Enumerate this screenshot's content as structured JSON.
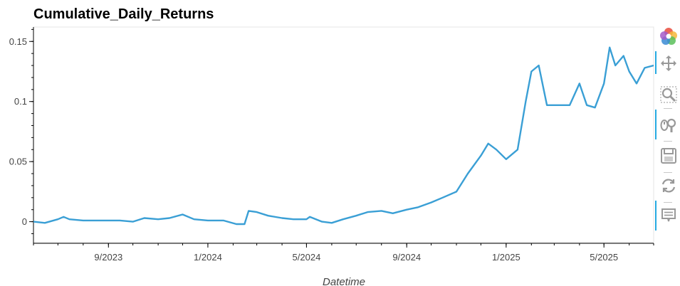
{
  "chart_data": {
    "type": "line",
    "title": "Cumulative_Daily_Returns",
    "xlabel": "Datetime",
    "ylabel": "",
    "x_tick_labels": [
      "9/2023",
      "1/2024",
      "5/2024",
      "9/2024",
      "1/2025",
      "5/2025"
    ],
    "x_tick_dates": [
      "2023-09-01",
      "2024-01-01",
      "2024-05-01",
      "2024-09-01",
      "2025-01-01",
      "2025-05-01"
    ],
    "xlim": [
      "2023-06-01",
      "2025-07-01"
    ],
    "y_tick_labels": [
      "0",
      "0.05",
      "0.1",
      "0.15"
    ],
    "y_tick_values": [
      0,
      0.05,
      0.1,
      0.15
    ],
    "ylim": [
      -0.018,
      0.162
    ],
    "grid": false,
    "line_color": "#3a9fd5",
    "series": [
      {
        "x": [
          "2023-06-01",
          "2023-06-15",
          "2023-07-01",
          "2023-07-08",
          "2023-07-15",
          "2023-08-01",
          "2023-08-15",
          "2023-09-01",
          "2023-09-15",
          "2023-10-01",
          "2023-10-15",
          "2023-11-01",
          "2023-11-15",
          "2023-12-01",
          "2023-12-15",
          "2024-01-01",
          "2024-01-20",
          "2024-02-05",
          "2024-02-15",
          "2024-02-20",
          "2024-03-01",
          "2024-03-15",
          "2024-04-01",
          "2024-04-15",
          "2024-05-01",
          "2024-05-05",
          "2024-05-20",
          "2024-06-01",
          "2024-06-15",
          "2024-07-01",
          "2024-07-15",
          "2024-08-01",
          "2024-08-15",
          "2024-09-01",
          "2024-09-15",
          "2024-10-01",
          "2024-10-15",
          "2024-11-01",
          "2024-11-15",
          "2024-12-01",
          "2024-12-10",
          "2024-12-20",
          "2025-01-01",
          "2025-01-15",
          "2025-01-25",
          "2025-02-01",
          "2025-02-10",
          "2025-02-20",
          "2025-03-01",
          "2025-03-10",
          "2025-03-20",
          "2025-04-01",
          "2025-04-10",
          "2025-04-20",
          "2025-05-01",
          "2025-05-08",
          "2025-05-15",
          "2025-05-25",
          "2025-06-01",
          "2025-06-10",
          "2025-06-20",
          "2025-07-01"
        ],
        "y": [
          0.0,
          -0.001,
          0.002,
          0.004,
          0.002,
          0.001,
          0.001,
          0.001,
          0.001,
          0.0,
          0.003,
          0.002,
          0.003,
          0.006,
          0.002,
          0.001,
          0.001,
          -0.002,
          -0.002,
          0.009,
          0.008,
          0.005,
          0.003,
          0.002,
          0.002,
          0.004,
          0.0,
          -0.001,
          0.002,
          0.005,
          0.008,
          0.009,
          0.007,
          0.01,
          0.012,
          0.016,
          0.02,
          0.025,
          0.04,
          0.055,
          0.065,
          0.06,
          0.052,
          0.06,
          0.1,
          0.125,
          0.13,
          0.097,
          0.097,
          0.097,
          0.097,
          0.115,
          0.097,
          0.095,
          0.115,
          0.145,
          0.13,
          0.138,
          0.125,
          0.115,
          0.128,
          0.13
        ]
      }
    ]
  },
  "toolbar": {
    "tools": [
      {
        "name": "bokeh-logo-icon"
      },
      {
        "name": "pan-icon"
      },
      {
        "name": "box-zoom-icon"
      },
      {
        "name": "wheel-zoom-icon"
      },
      {
        "name": "save-icon"
      },
      {
        "name": "reset-icon"
      },
      {
        "name": "hover-icon"
      }
    ]
  }
}
